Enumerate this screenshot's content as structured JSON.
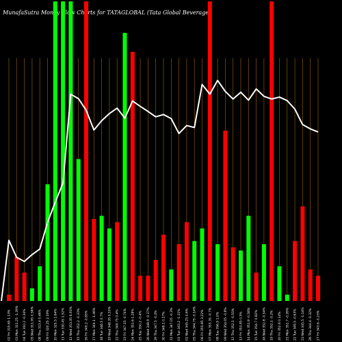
{
  "title": "MunafaSutra  Money Flow  Charts for TATAGLOBAL                    (Tata  Global                    Beverages",
  "colors": {
    "background": "#000000",
    "up": "#00ff00",
    "down": "#ff0000",
    "grid": "#8b5a00",
    "line": "#ffffff",
    "text": "#ffffff"
  },
  "chart_data": {
    "type": "bar",
    "title": "MunafaSutra  Money Flow  Charts for TATAGLOBAL                    (Tata  Global                    Beverages",
    "categories": [
      "02 Fri 315.65 1.13%",
      "03 Mon 311.25 -1.39%",
      "04 Tue 310.2 -0.34%",
      "05 Wed 311.95 0.56%",
      "08 Thu 313.4 0.46%",
      "09 Fri 320.25 2.19%",
      "10 Mon 325.5 1.64%",
      "11 Tue 330.45 1.52%",
      "12 Wed 353.35 6.93%",
      "15 Thu 352.2 -0.33%",
      "16 Fri 349.2 -0.85%",
      "17 Mon 344.1 -1.46%",
      "18 Tue 346.5 0.7%",
      "19 Wed 348.35 0.53%",
      "22 Thu 349.75 0.4%",
      "23 Fri 347.15 -0.74%",
      "24 Mon 351.6 1.28%",
      "25 Tue 350.2 -0.4%",
      "26 Wed 348.9 -0.37%",
      "29 Thu 347.5 -0.4%",
      "30 Fri 348.1 0.17%",
      "31 Mon 347.05 -0.3%",
      "01 Tue 343.2 -1.11%",
      "02 Wed 345.25 0.6%",
      "05 Thu 344.75 -0.14%",
      "06 Fri 355.85 3.22%",
      "07 Mon 353.35 -0.7%",
      "08 Tue 356.9 1.0%",
      "09 Wed 354.05 -0.8%",
      "12 Thu 352.1 -0.55%",
      "13 Fri 353.85 0.5%",
      "14 Mon 351.8 -0.58%",
      "15 Tue 354.7 0.82%",
      "16 Wed 352.8 -0.54%",
      "19 Thu 352.1 -0.2%",
      "20 Fri 352.6 0.14%",
      "21 Mon 351.7 -0.26%",
      "22 Tue 349.5 -0.63%",
      "23 Wed 345.5 -1.14%",
      "26 Thu 344.4 -0.32%",
      "27 Fri 343.6 -0.23%"
    ],
    "series": [
      {
        "values": [
          2,
          14,
          9,
          4,
          11,
          37,
          95,
          95,
          95,
          45,
          95,
          26,
          27,
          23,
          25,
          85,
          79,
          8,
          8,
          13,
          21,
          10,
          18,
          25,
          19,
          23,
          95,
          18,
          54,
          17,
          16,
          27,
          9,
          18,
          95,
          11,
          2,
          19,
          30,
          10,
          8
        ]
      },
      {
        "values": [
          315.65,
          311.25,
          310.2,
          311.95,
          313.4,
          320.25,
          325.5,
          330.45,
          353.35,
          352.2,
          349.2,
          344.1,
          346.5,
          348.35,
          349.75,
          347.15,
          351.6,
          350.2,
          348.9,
          347.5,
          348.1,
          347.05,
          343.2,
          345.25,
          344.75,
          355.85,
          353.35,
          356.9,
          354.05,
          352.1,
          353.85,
          351.8,
          354.7,
          352.8,
          352.1,
          352.6,
          351.7,
          349.5,
          345.5,
          344.4,
          343.6
        ]
      }
    ],
    "bar_direction": [
      "down",
      "down",
      "down",
      "up",
      "up",
      "up",
      "up",
      "up",
      "up",
      "up",
      "down",
      "down",
      "up",
      "up",
      "down",
      "up",
      "down",
      "down",
      "down",
      "down",
      "down",
      "up",
      "down",
      "down",
      "up",
      "up",
      "down",
      "up",
      "down",
      "down",
      "up",
      "up",
      "down",
      "up",
      "down",
      "up",
      "up",
      "down",
      "down",
      "down",
      "down"
    ],
    "ylim": [
      0,
      95
    ],
    "price_ylim": [
      300,
      360
    ],
    "grid": "vertical",
    "legend": "none"
  }
}
